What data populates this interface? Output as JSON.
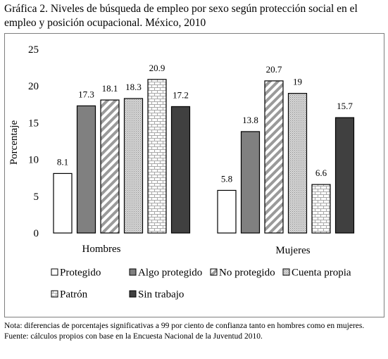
{
  "title": "Gráfica 2. Niveles de búsqueda de empleo por sexo según protección social en el empleo y posición ocupacional. México, 2010",
  "chart_data": {
    "type": "bar",
    "categories": [
      "Hombres",
      "Mujeres"
    ],
    "ylabel": "Porcentaje",
    "ylim": [
      0,
      25
    ],
    "yticks": [
      "0",
      "5",
      "10",
      "15",
      "20",
      "25"
    ],
    "grid": false,
    "legend_position": "bottom",
    "series": [
      {
        "name": "Protegido",
        "values": [
          8.1,
          5.8
        ],
        "labels": [
          "8.1",
          "5.8"
        ],
        "fill": "#ffffff",
        "pattern": "solid"
      },
      {
        "name": "Algo protegido",
        "values": [
          17.3,
          13.8
        ],
        "labels": [
          "17.3",
          "13.8"
        ],
        "fill": "#808080",
        "pattern": "solid"
      },
      {
        "name": "No protegido",
        "values": [
          18.1,
          20.7
        ],
        "labels": [
          "18.1",
          "20.7"
        ],
        "fill": "#b3b3b3",
        "pattern": "diagonal-stripes"
      },
      {
        "name": "Cuenta propia",
        "values": [
          18.3,
          19
        ],
        "labels": [
          "18.3",
          "19"
        ],
        "fill": "#c8c8c8",
        "pattern": "dots"
      },
      {
        "name": "Patrón",
        "values": [
          20.9,
          6.6
        ],
        "labels": [
          "20.9",
          "6.6"
        ],
        "fill": "#ececec",
        "pattern": "bricks"
      },
      {
        "name": "Sin trabajo",
        "values": [
          17.2,
          15.7
        ],
        "labels": [
          "17.2",
          "15.7"
        ],
        "fill": "#404040",
        "pattern": "solid"
      }
    ]
  },
  "notes": {
    "nota": "Nota: diferencias de porcentajes significativas a 99 por ciento de confianza tanto en hombres como en mujeres.",
    "fuente": "Fuente: cálculos propios con base en la Encuesta Nacional de la Juventud 2010."
  }
}
